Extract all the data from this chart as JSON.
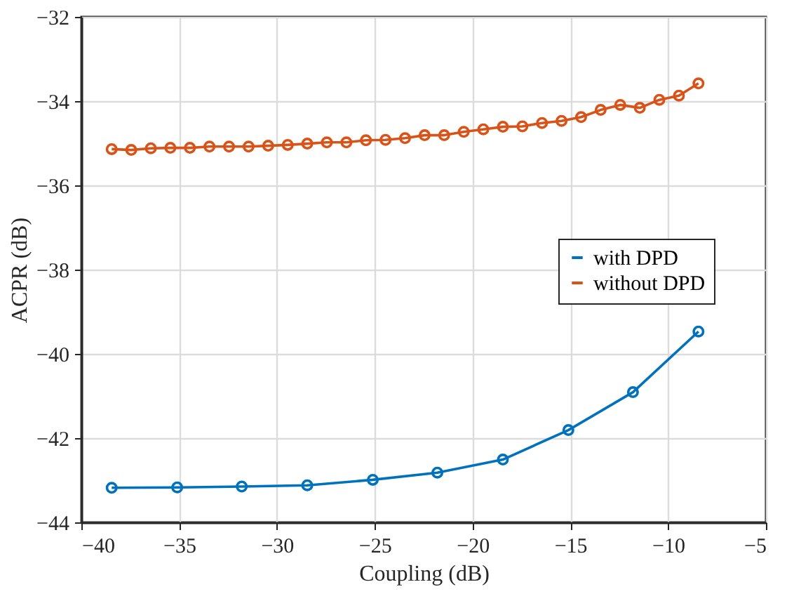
{
  "chart_data": {
    "type": "line",
    "xlabel": "Coupling (dB)",
    "ylabel": "ACPR (dB)",
    "xlim": [
      -40,
      -5
    ],
    "xticks": [
      -40,
      -35,
      -30,
      -25,
      -20,
      -15,
      -10,
      -5
    ],
    "ylim": [
      -44,
      -32
    ],
    "yticks": [
      -44,
      -42,
      -40,
      -38,
      -36,
      -34,
      -32
    ],
    "grid": true,
    "legend": "right",
    "marker": "circle",
    "line_style": "solid",
    "series": [
      {
        "name": "with DPD",
        "color": "#0072bd",
        "x": [
          -38.45,
          -35.1,
          -31.8,
          -28.45,
          -25.1,
          -21.8,
          -18.45,
          -15.1,
          -11.8,
          -8.45
        ],
        "values": [
          -43.18,
          -43.17,
          -43.15,
          -43.12,
          -42.99,
          -42.82,
          -42.51,
          -41.81,
          -40.91,
          -39.47
        ]
      },
      {
        "name": "without DPD",
        "color": "#d95319",
        "x": [
          -38.45,
          -37.45,
          -36.45,
          -35.45,
          -34.45,
          -33.45,
          -32.45,
          -31.45,
          -30.45,
          -29.45,
          -28.45,
          -27.45,
          -26.45,
          -25.45,
          -24.45,
          -23.45,
          -22.45,
          -21.45,
          -20.45,
          -19.45,
          -18.45,
          -17.45,
          -16.45,
          -15.45,
          -14.45,
          -13.45,
          -12.45,
          -11.45,
          -10.45,
          -9.45,
          -8.45
        ],
        "values": [
          -35.14,
          -35.16,
          -35.12,
          -35.11,
          -35.11,
          -35.08,
          -35.08,
          -35.08,
          -35.06,
          -35.04,
          -35.01,
          -34.98,
          -34.98,
          -34.93,
          -34.92,
          -34.88,
          -34.81,
          -34.81,
          -34.73,
          -34.67,
          -34.61,
          -34.6,
          -34.52,
          -34.47,
          -34.38,
          -34.21,
          -34.09,
          -34.16,
          -33.97,
          -33.87,
          -33.58
        ]
      }
    ]
  }
}
